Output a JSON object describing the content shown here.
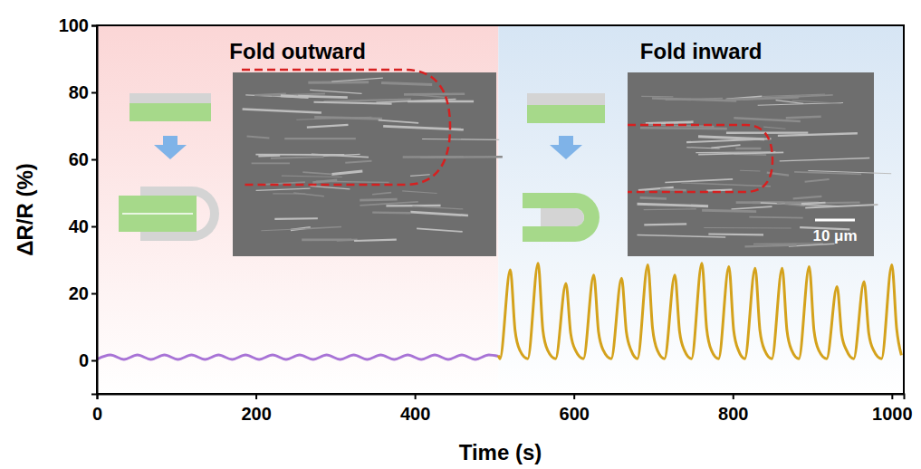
{
  "chart_data": {
    "type": "line",
    "x_label": "Time (s)",
    "y_label": "ΔR/R (%)",
    "xlim": [
      0,
      1015
    ],
    "ylim": [
      -10,
      100
    ],
    "xticks": [
      0,
      200,
      400,
      600,
      800,
      1000
    ],
    "yticks": [
      0,
      20,
      40,
      60,
      80,
      100
    ],
    "grid": false,
    "regions": [
      {
        "text": "Fold outward",
        "xlim": [
          0,
          505
        ],
        "color": "#fbd6d6"
      },
      {
        "text": "Fold inward",
        "xlim": [
          505,
          1015
        ],
        "color": "#d6e5f4"
      }
    ],
    "annotations": [
      {
        "text": "10 μm"
      }
    ],
    "series": [
      {
        "color": "#a873d6",
        "x": [
          0,
          17,
          34,
          51,
          68,
          85,
          102,
          119,
          136,
          153,
          170,
          187,
          204,
          221,
          238,
          255,
          272,
          289,
          306,
          323,
          340,
          357,
          374,
          391,
          408,
          425,
          442,
          459,
          476,
          493,
          505
        ],
        "values": [
          0.3,
          1.6,
          0.3,
          1.6,
          0.3,
          1.6,
          0.3,
          1.6,
          0.3,
          1.6,
          0.3,
          1.6,
          0.3,
          1.6,
          0.3,
          1.6,
          0.3,
          1.6,
          0.3,
          1.6,
          0.3,
          1.6,
          0.3,
          1.6,
          0.3,
          1.6,
          0.3,
          1.6,
          0.3,
          1.6,
          1.2
        ]
      },
      {
        "color": "#d4a21c",
        "x": [
          505,
          507,
          520,
          526,
          532,
          542,
          555,
          561,
          567,
          577,
          590,
          596,
          602,
          612,
          625,
          631,
          637,
          647,
          660,
          666,
          672,
          680,
          693,
          699,
          705,
          714,
          727,
          733,
          739,
          748,
          761,
          767,
          773,
          782,
          795,
          801,
          807,
          815,
          828,
          834,
          840,
          849,
          862,
          868,
          874,
          883,
          896,
          902,
          908,
          918,
          931,
          937,
          943,
          952,
          965,
          971,
          977,
          987,
          1000,
          1006,
          1012
        ],
        "values": [
          1.5,
          0.5,
          27,
          9,
          3,
          0.5,
          29,
          9,
          3,
          0.5,
          23,
          8,
          3,
          0.5,
          25.5,
          8.5,
          3,
          0.5,
          24.5,
          8.5,
          3,
          0.5,
          28.5,
          9.5,
          3,
          0.5,
          25.5,
          8.5,
          3,
          0.5,
          29,
          9.5,
          3,
          0.5,
          28,
          9,
          3,
          0.5,
          27.5,
          9,
          3,
          0.5,
          27.5,
          9,
          3,
          0.5,
          28,
          9,
          3,
          0.5,
          22,
          7.5,
          3,
          0.5,
          23.5,
          8,
          3,
          0.5,
          28.5,
          9.5,
          1.5
        ]
      }
    ]
  }
}
